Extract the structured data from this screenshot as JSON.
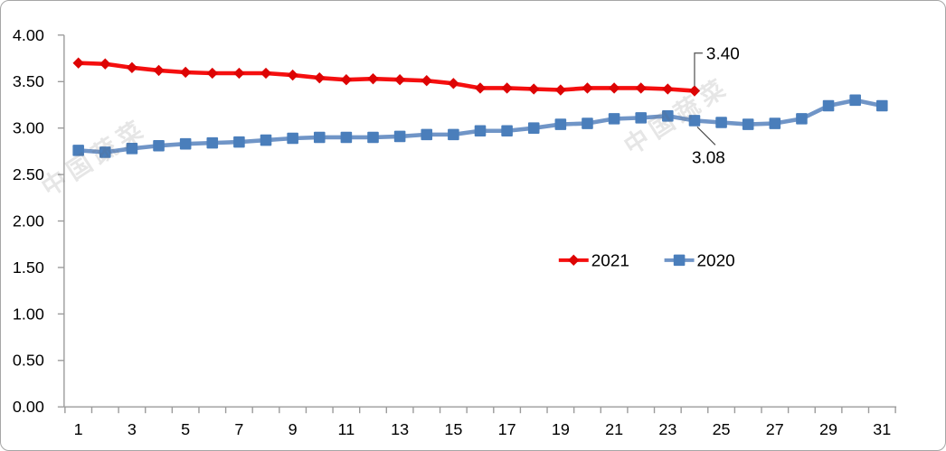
{
  "chart_data": {
    "type": "line",
    "title": "",
    "xlabel": "",
    "ylabel": "",
    "x_categories": [
      1,
      2,
      3,
      4,
      5,
      6,
      7,
      8,
      9,
      10,
      11,
      12,
      13,
      14,
      15,
      16,
      17,
      18,
      19,
      20,
      21,
      22,
      23,
      24,
      25,
      26,
      27,
      28,
      29,
      30,
      31
    ],
    "x_label_interval": 2,
    "ylim": [
      0,
      4
    ],
    "y_tick_step": 0.5,
    "y_tick_decimals": 2,
    "grid": false,
    "axis_color": "#9b9b9b",
    "label_color": "#000000",
    "leader_line_color": "#4d4d4d",
    "series": [
      {
        "name": "2021",
        "marker": "diamond",
        "color": "#f50f0f",
        "marker_color": "#dd0404",
        "values": [
          3.7,
          3.69,
          3.65,
          3.62,
          3.6,
          3.59,
          3.59,
          3.59,
          3.57,
          3.54,
          3.52,
          3.53,
          3.52,
          3.51,
          3.48,
          3.43,
          3.43,
          3.42,
          3.41,
          3.43,
          3.43,
          3.43,
          3.42,
          3.4
        ]
      },
      {
        "name": "2020",
        "marker": "square",
        "color": "#7095c7",
        "marker_color": "#4a7ebb",
        "values": [
          2.76,
          2.74,
          2.78,
          2.81,
          2.83,
          2.84,
          2.85,
          2.87,
          2.89,
          2.9,
          2.9,
          2.9,
          2.91,
          2.93,
          2.93,
          2.97,
          2.97,
          3.0,
          3.04,
          3.05,
          3.1,
          3.11,
          3.13,
          3.08,
          3.06,
          3.04,
          3.05,
          3.1,
          3.24,
          3.3,
          3.24
        ]
      }
    ],
    "legend": {
      "entries": [
        "2021",
        "2020"
      ],
      "position": "inside-middle"
    },
    "annotations": [
      {
        "text": "3.40",
        "series_index": 0,
        "x": 24,
        "placement": "above"
      },
      {
        "text": "3.08",
        "series_index": 1,
        "x": 24,
        "placement": "below"
      }
    ],
    "watermark": {
      "text": "中国蔬菜"
    }
  }
}
